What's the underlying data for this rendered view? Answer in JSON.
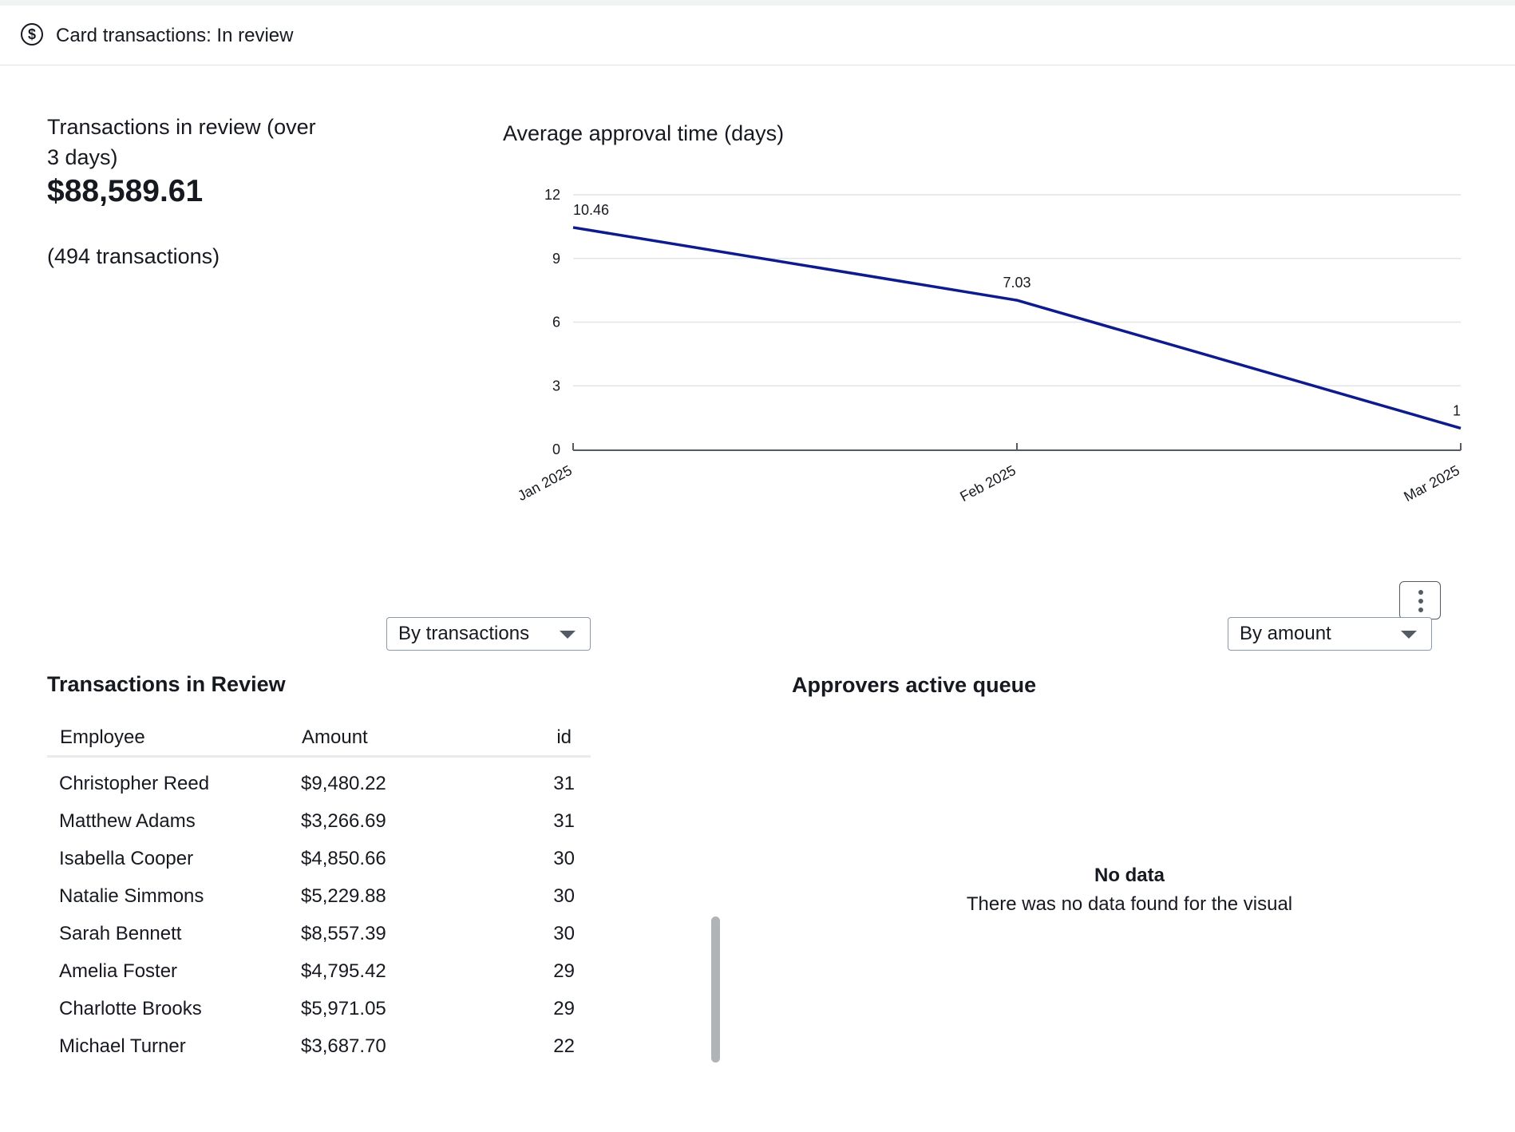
{
  "header": {
    "icon": "dollar-circle-icon",
    "title": "Card transactions: In review"
  },
  "kpi": {
    "title": "Transactions in review (over 3 days)",
    "value": "$88,589.61",
    "count": "(494 transactions)"
  },
  "chart_data": {
    "type": "line",
    "title": "Average approval time (days)",
    "xlabel": "",
    "ylabel": "",
    "categories": [
      "Jan 2025",
      "Feb 2025",
      "Mar 2025"
    ],
    "series": [
      {
        "values": [
          10.46,
          7.03,
          1
        ],
        "color": "#0d1b8c"
      }
    ],
    "data_labels": [
      "10.46",
      "7.03",
      "1"
    ],
    "ylim": [
      0,
      12
    ],
    "yticks": [
      0,
      3,
      6,
      9,
      12
    ],
    "grid": true,
    "legend": "none"
  },
  "controls": {
    "left_select": "By transactions",
    "right_select": "By amount",
    "menu_icon": "more-vertical-icon"
  },
  "table": {
    "title": "Transactions in Review",
    "columns": [
      "Employee",
      "Amount",
      "id"
    ],
    "rows": [
      {
        "employee": "Christopher Reed",
        "amount": "$9,480.22",
        "id": "31"
      },
      {
        "employee": "Matthew Adams",
        "amount": "$3,266.69",
        "id": "31"
      },
      {
        "employee": "Isabella Cooper",
        "amount": "$4,850.66",
        "id": "30"
      },
      {
        "employee": "Natalie Simmons",
        "amount": "$5,229.88",
        "id": "30"
      },
      {
        "employee": "Sarah Bennett",
        "amount": "$8,557.39",
        "id": "30"
      },
      {
        "employee": "Amelia Foster",
        "amount": "$4,795.42",
        "id": "29"
      },
      {
        "employee": "Charlotte Brooks",
        "amount": "$5,971.05",
        "id": "29"
      },
      {
        "employee": "Michael Turner",
        "amount": "$3,687.70",
        "id": "22"
      }
    ]
  },
  "queue": {
    "title": "Approvers active queue",
    "empty_title": "No data",
    "empty_message": "There was no data found for the visual"
  }
}
